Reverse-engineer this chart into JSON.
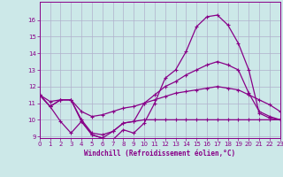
{
  "xlabel": "Windchill (Refroidissement éolien,°C)",
  "background_color": "#cce8e8",
  "grid_color": "#b0b0cc",
  "line_color": "#880088",
  "x": [
    0,
    1,
    2,
    3,
    4,
    5,
    6,
    7,
    8,
    9,
    10,
    11,
    12,
    13,
    14,
    15,
    16,
    17,
    18,
    19,
    20,
    21,
    22,
    23
  ],
  "line1": [
    11.5,
    10.8,
    11.2,
    11.2,
    9.9,
    9.1,
    8.9,
    8.8,
    9.4,
    9.2,
    9.8,
    11.0,
    12.5,
    13.0,
    14.1,
    15.6,
    16.2,
    16.3,
    15.7,
    14.6,
    13.0,
    10.4,
    10.1,
    10.0
  ],
  "line2": [
    11.5,
    11.1,
    11.2,
    11.2,
    10.5,
    10.2,
    10.3,
    10.5,
    10.7,
    10.8,
    11.0,
    11.2,
    11.4,
    11.6,
    11.7,
    11.8,
    11.9,
    12.0,
    11.9,
    11.8,
    11.5,
    11.2,
    10.9,
    10.5
  ],
  "line3": [
    11.5,
    10.8,
    11.2,
    11.2,
    10.0,
    9.2,
    9.1,
    9.3,
    9.8,
    9.9,
    11.0,
    11.5,
    12.0,
    12.3,
    12.7,
    13.0,
    13.3,
    13.5,
    13.3,
    13.0,
    11.6,
    10.5,
    10.2,
    10.0
  ],
  "line4": [
    11.5,
    10.8,
    9.9,
    9.2,
    9.9,
    9.1,
    8.9,
    9.3,
    9.8,
    9.9,
    10.0,
    10.0,
    10.0,
    10.0,
    10.0,
    10.0,
    10.0,
    10.0,
    10.0,
    10.0,
    10.0,
    10.0,
    10.0,
    10.0
  ],
  "ylim_min": 9,
  "ylim_max": 17,
  "xlim_min": 0,
  "xlim_max": 23,
  "yticks": [
    9,
    10,
    11,
    12,
    13,
    14,
    15,
    16
  ],
  "xticks": [
    0,
    1,
    2,
    3,
    4,
    5,
    6,
    7,
    8,
    9,
    10,
    11,
    12,
    13,
    14,
    15,
    16,
    17,
    18,
    19,
    20,
    21,
    22,
    23
  ]
}
